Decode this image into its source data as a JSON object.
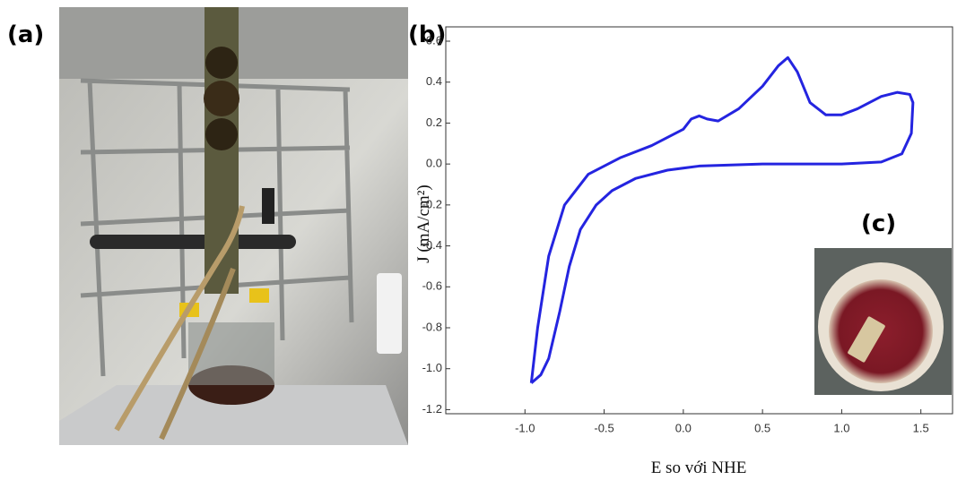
{
  "panel_labels": [
    "(a)",
    "(b)",
    "(c)"
  ],
  "chart_data": {
    "type": "line",
    "xlabel": "E so với NHE",
    "ylabel": "J (mA/cm²)",
    "xlim": [
      -1.5,
      1.7
    ],
    "ylim": [
      -1.22,
      0.67
    ],
    "xticks": [
      {
        "value": -1,
        "label": "-1.0"
      },
      -0.5,
      {
        "value": 0,
        "label": "0.0"
      },
      0.5,
      {
        "value": 1,
        "label": "1.0"
      },
      1.5
    ],
    "yticks": [
      0.6,
      0.4,
      0.2,
      {
        "value": 0,
        "label": "0.0"
      },
      -0.2,
      -0.4,
      -0.6,
      -0.8,
      {
        "value": -1,
        "label": "-1.0"
      },
      -1.2
    ],
    "series": [
      {
        "color": "#2424e0",
        "x": [
          -0.96,
          -0.92,
          -0.85,
          -0.75,
          -0.6,
          -0.4,
          -0.2,
          0.0,
          0.05,
          0.1,
          0.15,
          0.22,
          0.35,
          0.5,
          0.6,
          0.66,
          0.72,
          0.8,
          0.9,
          1.0,
          1.1,
          1.25,
          1.35,
          1.43,
          1.45,
          1.44,
          1.38,
          1.25,
          1.0,
          0.5,
          0.1,
          -0.1,
          -0.3,
          -0.45,
          -0.55,
          -0.65,
          -0.72,
          -0.78,
          -0.85,
          -0.9,
          -0.96
        ],
        "values": [
          -1.07,
          -0.8,
          -0.45,
          -0.2,
          -0.05,
          0.03,
          0.09,
          0.17,
          0.22,
          0.235,
          0.22,
          0.21,
          0.27,
          0.38,
          0.48,
          0.52,
          0.45,
          0.3,
          0.24,
          0.24,
          0.27,
          0.33,
          0.35,
          0.34,
          0.3,
          0.15,
          0.05,
          0.01,
          0.0,
          0.0,
          -0.01,
          -0.03,
          -0.07,
          -0.13,
          -0.2,
          -0.32,
          -0.5,
          -0.72,
          -0.95,
          -1.03,
          -1.07
        ]
      }
    ]
  }
}
